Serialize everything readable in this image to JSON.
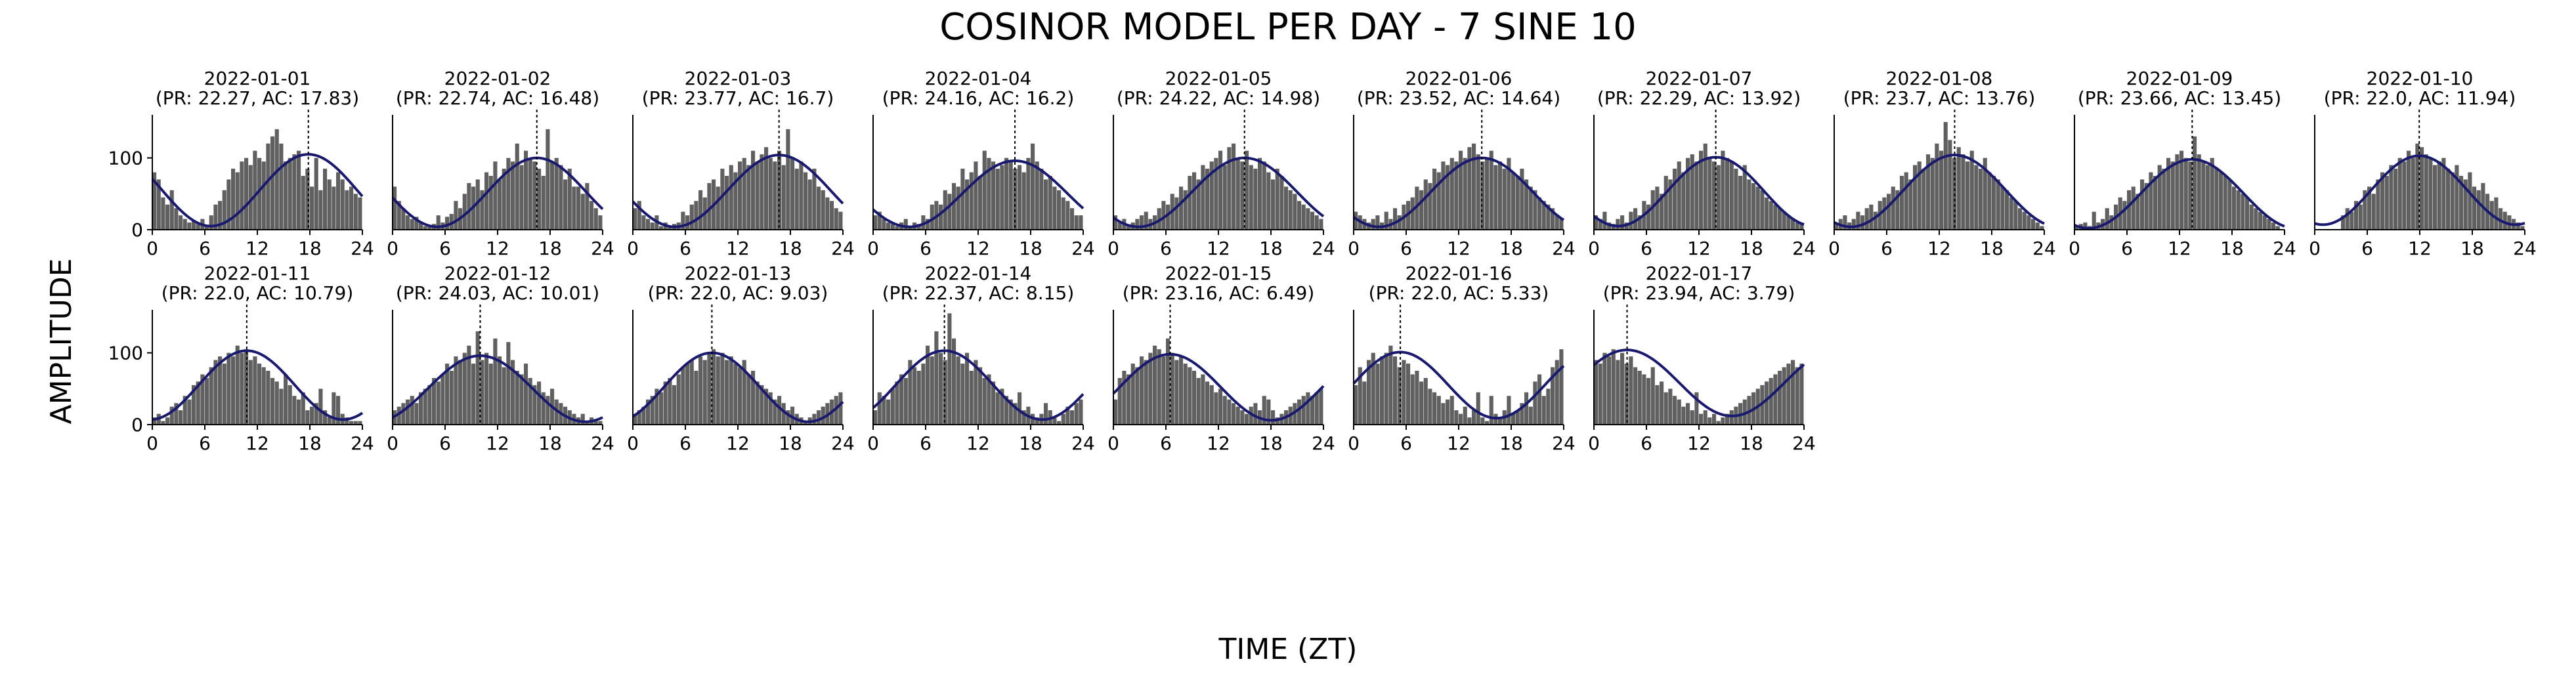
{
  "figure": {
    "title": "COSINOR MODEL PER DAY - 7 SINE 10",
    "xlabel": "TIME (ZT)",
    "ylabel": "AMPLITUDE"
  },
  "colors": {
    "bar": "#606060",
    "fit": "#191970",
    "acrophase_line": "#000000",
    "axis": "#000000"
  },
  "chart_data": {
    "type": "bar",
    "overlay": "cosinor-fit-line",
    "xlim": [
      0,
      24
    ],
    "ylim": [
      0,
      160
    ],
    "xticks": [
      0,
      6,
      12,
      18,
      24
    ],
    "yticks": [
      0,
      100
    ],
    "grid": false,
    "legend": "none",
    "panels": [
      {
        "title": "2022-01-01",
        "subtitle": "(PR: 22.27, AC: 17.83)",
        "period": 22.27,
        "acrophase": 17.83,
        "mesor": 55,
        "amplitude": 50,
        "values": [
          80,
          70,
          45,
          35,
          55,
          30,
          20,
          15,
          10,
          12,
          8,
          15,
          5,
          20,
          35,
          40,
          55,
          70,
          85,
          80,
          95,
          100,
          90,
          110,
          100,
          95,
          120,
          130,
          140,
          120,
          95,
          100,
          105,
          110,
          75,
          85,
          60,
          100,
          55,
          85,
          70,
          60,
          80,
          70,
          55,
          60,
          50,
          45
        ]
      },
      {
        "title": "2022-01-02",
        "subtitle": "(PR: 22.74, AC: 16.48)",
        "period": 22.74,
        "acrophase": 16.48,
        "mesor": 52,
        "amplitude": 48,
        "values": [
          60,
          40,
          30,
          20,
          15,
          18,
          10,
          5,
          5,
          8,
          20,
          10,
          18,
          22,
          40,
          30,
          50,
          65,
          60,
          70,
          55,
          80,
          75,
          95,
          70,
          85,
          100,
          95,
          120,
          90,
          110,
          100,
          95,
          85,
          75,
          140,
          95,
          100,
          90,
          70,
          85,
          60,
          60,
          50,
          65,
          40,
          30,
          20
        ]
      },
      {
        "title": "2022-01-03",
        "subtitle": "(PR: 23.77, AC: 16.7)",
        "period": 23.77,
        "acrophase": 16.7,
        "mesor": 54,
        "amplitude": 50,
        "values": [
          30,
          40,
          20,
          15,
          10,
          20,
          5,
          10,
          5,
          8,
          10,
          25,
          20,
          35,
          40,
          55,
          45,
          65,
          70,
          60,
          85,
          75,
          90,
          80,
          95,
          100,
          90,
          110,
          95,
          105,
          115,
          100,
          95,
          110,
          90,
          140,
          100,
          85,
          95,
          80,
          70,
          85,
          60,
          55,
          45,
          40,
          30,
          25
        ]
      },
      {
        "title": "2022-01-04",
        "subtitle": "(PR: 24.16, AC: 16.2)",
        "period": 24.16,
        "acrophase": 16.2,
        "mesor": 50,
        "amplitude": 46,
        "values": [
          20,
          25,
          15,
          10,
          8,
          5,
          10,
          15,
          5,
          10,
          8,
          20,
          15,
          35,
          40,
          35,
          55,
          50,
          65,
          60,
          85,
          70,
          80,
          95,
          75,
          110,
          100,
          95,
          85,
          90,
          100,
          95,
          85,
          90,
          80,
          100,
          120,
          95,
          85,
          70,
          75,
          60,
          55,
          45,
          40,
          30,
          20,
          20
        ]
      },
      {
        "title": "2022-01-05",
        "subtitle": "(PR: 24.22, AC: 14.98)",
        "period": 24.22,
        "acrophase": 14.98,
        "mesor": 52,
        "amplitude": 48,
        "values": [
          20,
          10,
          15,
          5,
          10,
          15,
          20,
          25,
          15,
          20,
          30,
          40,
          35,
          50,
          45,
          60,
          55,
          75,
          80,
          70,
          90,
          85,
          95,
          100,
          110,
          90,
          115,
          120,
          100,
          95,
          110,
          90,
          85,
          100,
          95,
          80,
          70,
          85,
          75,
          60,
          55,
          50,
          40,
          35,
          30,
          25,
          20,
          15
        ]
      },
      {
        "title": "2022-01-06",
        "subtitle": "(PR: 23.52, AC: 14.64)",
        "period": 23.52,
        "acrophase": 14.64,
        "mesor": 52,
        "amplitude": 48,
        "values": [
          25,
          20,
          15,
          10,
          15,
          20,
          10,
          25,
          15,
          30,
          20,
          35,
          40,
          45,
          60,
          55,
          70,
          65,
          85,
          80,
          95,
          90,
          100,
          95,
          110,
          100,
          115,
          120,
          105,
          95,
          100,
          110,
          90,
          95,
          85,
          100,
          80,
          75,
          85,
          70,
          60,
          55,
          45,
          40,
          35,
          30,
          20,
          15
        ]
      },
      {
        "title": "2022-01-07",
        "subtitle": "(PR: 22.29, AC: 13.92)",
        "period": 22.29,
        "acrophase": 13.92,
        "mesor": 53,
        "amplitude": 48,
        "values": [
          20,
          15,
          25,
          10,
          8,
          15,
          20,
          10,
          25,
          30,
          20,
          40,
          35,
          55,
          60,
          50,
          75,
          70,
          85,
          95,
          80,
          100,
          105,
          95,
          110,
          120,
          100,
          95,
          90,
          110,
          100,
          95,
          85,
          75,
          90,
          70,
          65,
          60,
          55,
          45,
          40,
          35,
          30,
          25,
          20,
          15,
          10,
          10
        ]
      },
      {
        "title": "2022-01-08",
        "subtitle": "(PR: 23.7, AC: 13.76)",
        "period": 23.7,
        "acrophase": 13.76,
        "mesor": 54,
        "amplitude": 50,
        "values": [
          10,
          15,
          20,
          10,
          15,
          25,
          20,
          30,
          35,
          25,
          40,
          45,
          50,
          60,
          55,
          75,
          80,
          70,
          90,
          95,
          85,
          105,
          100,
          120,
          110,
          150,
          125,
          100,
          115,
          105,
          95,
          110,
          90,
          85,
          100,
          80,
          75,
          70,
          60,
          55,
          45,
          40,
          30,
          25,
          20,
          15,
          10,
          5
        ]
      },
      {
        "title": "2022-01-09",
        "subtitle": "(PR: 23.66, AC: 13.45)",
        "period": 23.66,
        "acrophase": 13.45,
        "mesor": 50,
        "amplitude": 48,
        "values": [
          5,
          8,
          10,
          5,
          25,
          10,
          15,
          30,
          20,
          35,
          45,
          40,
          55,
          60,
          50,
          70,
          65,
          80,
          75,
          90,
          85,
          100,
          95,
          105,
          110,
          100,
          95,
          130,
          105,
          95,
          90,
          100,
          85,
          80,
          75,
          70,
          60,
          55,
          50,
          45,
          35,
          30,
          25,
          20,
          15,
          10,
          5,
          0
        ]
      },
      {
        "title": "2022-01-10",
        "subtitle": "(PR: 22.0, AC: 11.94)",
        "period": 22.0,
        "acrophase": 11.94,
        "mesor": 55,
        "amplitude": 48,
        "values": [
          0,
          0,
          0,
          0,
          0,
          0,
          20,
          30,
          25,
          40,
          35,
          55,
          60,
          50,
          70,
          80,
          75,
          90,
          85,
          100,
          95,
          110,
          100,
          120,
          115,
          105,
          100,
          90,
          95,
          100,
          85,
          80,
          90,
          75,
          70,
          80,
          60,
          55,
          65,
          50,
          40,
          45,
          30,
          25,
          20,
          15,
          10,
          5
        ]
      },
      {
        "title": "2022-01-11",
        "subtitle": "(PR: 22.0, AC: 10.79)",
        "period": 22.0,
        "acrophase": 10.79,
        "mesor": 55,
        "amplitude": 48,
        "values": [
          10,
          15,
          5,
          10,
          25,
          30,
          20,
          40,
          35,
          55,
          60,
          70,
          65,
          80,
          90,
          95,
          85,
          100,
          95,
          110,
          100,
          105,
          90,
          95,
          85,
          80,
          75,
          65,
          60,
          50,
          70,
          55,
          40,
          35,
          45,
          20,
          25,
          30,
          50,
          20,
          10,
          45,
          40,
          15,
          10,
          5,
          5,
          5
        ]
      },
      {
        "title": "2022-01-12",
        "subtitle": "(PR: 24.03, AC: 10.01)",
        "period": 24.03,
        "acrophase": 10.01,
        "mesor": 50,
        "amplitude": 46,
        "values": [
          20,
          25,
          30,
          35,
          40,
          30,
          45,
          50,
          55,
          65,
          60,
          70,
          85,
          75,
          95,
          90,
          100,
          110,
          85,
          130,
          90,
          100,
          85,
          120,
          95,
          80,
          115,
          90,
          75,
          70,
          85,
          65,
          55,
          60,
          45,
          40,
          50,
          35,
          30,
          25,
          20,
          15,
          10,
          15,
          5,
          10,
          5,
          5
        ]
      },
      {
        "title": "2022-01-13",
        "subtitle": "(PR: 22.0, AC: 9.03)",
        "period": 22.0,
        "acrophase": 9.03,
        "mesor": 52,
        "amplitude": 48,
        "values": [
          15,
          20,
          25,
          35,
          40,
          50,
          45,
          60,
          65,
          55,
          70,
          80,
          85,
          90,
          75,
          95,
          90,
          100,
          105,
          95,
          100,
          90,
          95,
          85,
          80,
          90,
          70,
          75,
          60,
          55,
          50,
          45,
          35,
          40,
          30,
          20,
          25,
          15,
          10,
          5,
          10,
          15,
          20,
          25,
          30,
          35,
          40,
          45
        ]
      },
      {
        "title": "2022-01-14",
        "subtitle": "(PR: 22.37, AC: 8.15)",
        "period": 22.37,
        "acrophase": 8.15,
        "mesor": 55,
        "amplitude": 48,
        "values": [
          20,
          45,
          40,
          35,
          50,
          60,
          70,
          65,
          90,
          80,
          75,
          85,
          110,
          95,
          130,
          100,
          90,
          155,
          120,
          95,
          85,
          100,
          75,
          90,
          80,
          65,
          70,
          60,
          45,
          50,
          40,
          35,
          30,
          45,
          20,
          25,
          15,
          10,
          15,
          30,
          20,
          10,
          5,
          15,
          25,
          20,
          30,
          35
        ]
      },
      {
        "title": "2022-01-15",
        "subtitle": "(PR: 23.16, AC: 6.49)",
        "period": 23.16,
        "acrophase": 6.49,
        "mesor": 52,
        "amplitude": 46,
        "values": [
          35,
          65,
          75,
          70,
          85,
          80,
          95,
          90,
          100,
          110,
          105,
          95,
          120,
          100,
          90,
          95,
          85,
          80,
          75,
          65,
          70,
          60,
          55,
          45,
          50,
          40,
          35,
          30,
          25,
          20,
          15,
          25,
          30,
          20,
          40,
          35,
          20,
          10,
          15,
          20,
          25,
          30,
          35,
          40,
          45,
          40,
          45,
          50
        ]
      },
      {
        "title": "2022-01-16",
        "subtitle": "(PR: 22.0, AC: 5.33)",
        "period": 22.0,
        "acrophase": 5.33,
        "mesor": 55,
        "amplitude": 46,
        "values": [
          55,
          80,
          60,
          90,
          100,
          85,
          95,
          100,
          110,
          95,
          80,
          90,
          85,
          70,
          75,
          60,
          65,
          50,
          45,
          40,
          30,
          35,
          40,
          20,
          15,
          25,
          10,
          20,
          45,
          10,
          5,
          40,
          15,
          10,
          20,
          40,
          15,
          20,
          30,
          45,
          25,
          60,
          70,
          40,
          50,
          80,
          90,
          105
        ]
      },
      {
        "title": "2022-01-17",
        "subtitle": "(PR: 23.94, AC: 3.79)",
        "period": 23.94,
        "acrophase": 3.79,
        "mesor": 58,
        "amplitude": 46,
        "values": [
          90,
          85,
          100,
          95,
          105,
          90,
          100,
          85,
          95,
          80,
          75,
          70,
          65,
          80,
          55,
          60,
          45,
          50,
          40,
          35,
          25,
          30,
          20,
          45,
          15,
          20,
          10,
          15,
          5,
          10,
          15,
          20,
          25,
          30,
          35,
          40,
          45,
          50,
          55,
          60,
          65,
          70,
          75,
          80,
          85,
          90,
          80,
          85
        ]
      }
    ]
  }
}
